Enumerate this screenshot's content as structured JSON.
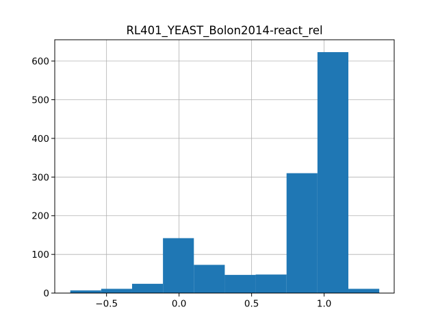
{
  "chart_data": {
    "type": "bar",
    "title": "RL401_YEAST_Bolon2014-react_rel",
    "xlabel": "",
    "ylabel": "",
    "grid": true,
    "bar_color": "#1f77b4",
    "xlim": [
      -0.857,
      1.483
    ],
    "ylim": [
      0,
      655
    ],
    "x_ticks": [
      {
        "value": -0.5,
        "label": "−0.5"
      },
      {
        "value": 0.0,
        "label": "0.0"
      },
      {
        "value": 0.5,
        "label": "0.5"
      },
      {
        "value": 1.0,
        "label": "1.0"
      }
    ],
    "y_ticks": [
      {
        "value": 0,
        "label": "0"
      },
      {
        "value": 100,
        "label": "100"
      },
      {
        "value": 200,
        "label": "200"
      },
      {
        "value": 300,
        "label": "300"
      },
      {
        "value": 400,
        "label": "400"
      },
      {
        "value": 500,
        "label": "500"
      },
      {
        "value": 600,
        "label": "600"
      }
    ],
    "bins": [
      {
        "x0": -0.75,
        "x1": -0.537,
        "count": 7
      },
      {
        "x0": -0.537,
        "x1": -0.324,
        "count": 11
      },
      {
        "x0": -0.324,
        "x1": -0.111,
        "count": 24
      },
      {
        "x0": -0.111,
        "x1": 0.102,
        "count": 142
      },
      {
        "x0": 0.102,
        "x1": 0.315,
        "count": 73
      },
      {
        "x0": 0.315,
        "x1": 0.528,
        "count": 47
      },
      {
        "x0": 0.528,
        "x1": 0.741,
        "count": 48
      },
      {
        "x0": 0.741,
        "x1": 0.954,
        "count": 310
      },
      {
        "x0": 0.954,
        "x1": 1.167,
        "count": 623
      },
      {
        "x0": 1.167,
        "x1": 1.38,
        "count": 11
      }
    ]
  }
}
